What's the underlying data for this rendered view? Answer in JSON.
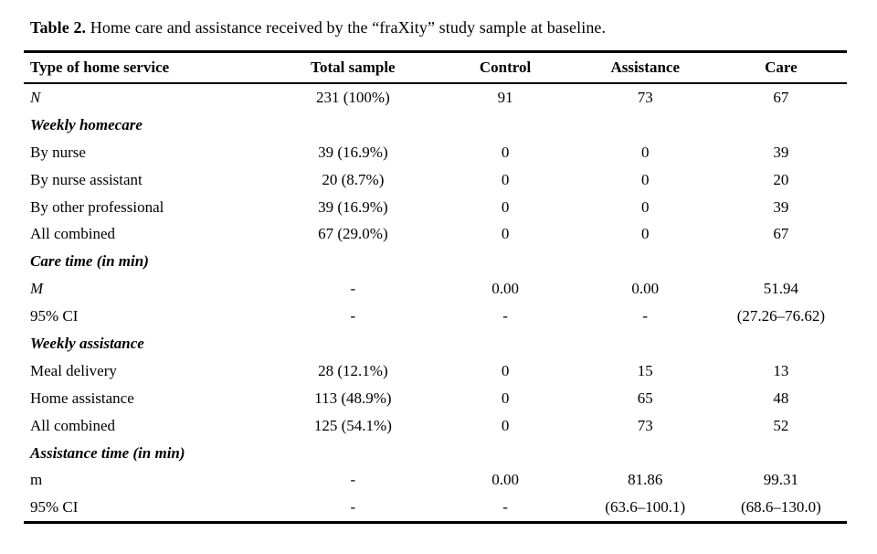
{
  "caption": {
    "prefix": "Table 2.",
    "text": " Home care and assistance received by the “fraXity” study sample at baseline."
  },
  "table": {
    "columns": [
      "Type of home service",
      "Total sample",
      "Control",
      "Assistance",
      "Care"
    ],
    "rows": [
      {
        "label": "N",
        "label_style": "italic",
        "cells": [
          "231 (100%)",
          "91",
          "73",
          "67"
        ]
      },
      {
        "label": "Weekly homecare",
        "label_style": "bold-italic",
        "cells": [
          "",
          "",
          "",
          ""
        ]
      },
      {
        "label": "By nurse",
        "label_style": "normal",
        "cells": [
          "39 (16.9%)",
          "0",
          "0",
          "39"
        ]
      },
      {
        "label": "By nurse assistant",
        "label_style": "normal",
        "cells": [
          "20 (8.7%)",
          "0",
          "0",
          "20"
        ]
      },
      {
        "label": "By other professional",
        "label_style": "normal",
        "cells": [
          "39 (16.9%)",
          "0",
          "0",
          "39"
        ]
      },
      {
        "label": "All combined",
        "label_style": "normal",
        "cells": [
          "67 (29.0%)",
          "0",
          "0",
          "67"
        ]
      },
      {
        "label": "Care time (in min)",
        "label_style": "bold-italic",
        "cells": [
          "",
          "",
          "",
          ""
        ]
      },
      {
        "label": "M",
        "label_style": "italic",
        "cells": [
          "-",
          "0.00",
          "0.00",
          "51.94"
        ]
      },
      {
        "label": "95% CI",
        "label_style": "normal",
        "cells": [
          "-",
          "-",
          "-",
          "(27.26–76.62)"
        ]
      },
      {
        "label": "Weekly assistance",
        "label_style": "bold-italic",
        "cells": [
          "",
          "",
          "",
          ""
        ]
      },
      {
        "label": "Meal delivery",
        "label_style": "normal",
        "cells": [
          "28 (12.1%)",
          "0",
          "15",
          "13"
        ]
      },
      {
        "label": "Home assistance",
        "label_style": "normal",
        "cells": [
          "113 (48.9%)",
          "0",
          "65",
          "48"
        ]
      },
      {
        "label": "All combined",
        "label_style": "normal",
        "cells": [
          "125 (54.1%)",
          "0",
          "73",
          "52"
        ]
      },
      {
        "label": "Assistance time (in min)",
        "label_style": "bold-italic",
        "cells": [
          "",
          "",
          "",
          ""
        ]
      },
      {
        "label": "m",
        "label_style": "normal",
        "cells": [
          "-",
          "0.00",
          "81.86",
          "99.31"
        ]
      },
      {
        "label": "95% CI",
        "label_style": "normal",
        "cells": [
          "-",
          "-",
          "(63.6–100.1)",
          "(68.6–130.0)"
        ]
      }
    ]
  },
  "colors": {
    "background": "#ffffff",
    "text": "#000000",
    "rule": "#000000"
  }
}
